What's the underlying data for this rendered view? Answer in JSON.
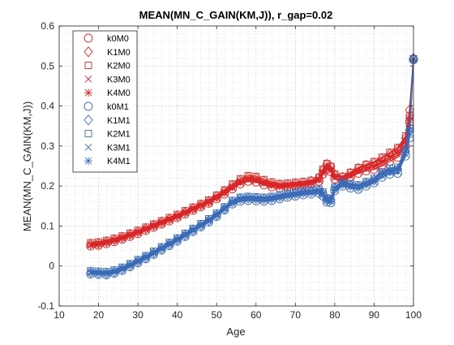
{
  "chart_data": {
    "type": "line",
    "title": "MEAN(MN_C_GAIN(KM,J)), r_gap=0.02",
    "xlabel": "Age",
    "ylabel": "MEAN(MN_C_GAIN(KM,J))",
    "xlim": [
      10,
      100
    ],
    "ylim": [
      -0.1,
      0.6
    ],
    "xticks": [
      10,
      20,
      30,
      40,
      50,
      60,
      70,
      80,
      90,
      100
    ],
    "yticks": [
      -0.1,
      0,
      0.1,
      0.2,
      0.3,
      0.4,
      0.5,
      0.6
    ],
    "xtick_labels": [
      "10",
      "20",
      "30",
      "40",
      "50",
      "60",
      "70",
      "80",
      "90",
      "100"
    ],
    "ytick_labels": [
      "-0.1",
      "0",
      "0.1",
      "0.2",
      "0.3",
      "0.4",
      "0.5",
      "0.6"
    ],
    "grid": "on (major and minor dotted)",
    "legend_position": "top-left",
    "colors": {
      "M0": "#d62728",
      "M1": "#3b6bb5"
    },
    "x": [
      18,
      20,
      22,
      24,
      26,
      28,
      30,
      32,
      34,
      36,
      38,
      40,
      42,
      44,
      46,
      48,
      50,
      52,
      54,
      56,
      58,
      60,
      62,
      64,
      66,
      68,
      70,
      72,
      74,
      76,
      77,
      78,
      79,
      80,
      82,
      84,
      86,
      88,
      90,
      92,
      94,
      96,
      98,
      99,
      100
    ],
    "series": [
      {
        "name": "k0M0",
        "marker": "circle",
        "color": "#d62728",
        "values": [
          0.05,
          0.052,
          0.056,
          0.061,
          0.067,
          0.074,
          0.081,
          0.089,
          0.097,
          0.105,
          0.113,
          0.121,
          0.13,
          0.139,
          0.148,
          0.157,
          0.168,
          0.18,
          0.193,
          0.205,
          0.212,
          0.21,
          0.203,
          0.198,
          0.196,
          0.198,
          0.2,
          0.202,
          0.205,
          0.212,
          0.23,
          0.242,
          0.236,
          0.218,
          0.212,
          0.222,
          0.232,
          0.238,
          0.242,
          0.25,
          0.262,
          0.272,
          0.3,
          0.36,
          0.516
        ]
      },
      {
        "name": "K1M0",
        "marker": "diamond",
        "color": "#d62728",
        "values": [
          0.055,
          0.057,
          0.061,
          0.066,
          0.072,
          0.079,
          0.086,
          0.094,
          0.102,
          0.11,
          0.118,
          0.126,
          0.135,
          0.144,
          0.153,
          0.162,
          0.174,
          0.187,
          0.201,
          0.214,
          0.222,
          0.22,
          0.212,
          0.206,
          0.203,
          0.204,
          0.206,
          0.208,
          0.212,
          0.22,
          0.24,
          0.254,
          0.248,
          0.228,
          0.222,
          0.232,
          0.244,
          0.252,
          0.258,
          0.268,
          0.28,
          0.292,
          0.32,
          0.39,
          0.519
        ]
      },
      {
        "name": "K2M0",
        "marker": "square",
        "color": "#d62728",
        "values": [
          0.058,
          0.06,
          0.064,
          0.069,
          0.075,
          0.082,
          0.089,
          0.097,
          0.105,
          0.113,
          0.121,
          0.129,
          0.138,
          0.147,
          0.156,
          0.165,
          0.177,
          0.19,
          0.205,
          0.218,
          0.226,
          0.224,
          0.216,
          0.21,
          0.206,
          0.207,
          0.209,
          0.211,
          0.214,
          0.222,
          0.242,
          0.256,
          0.249,
          0.23,
          0.224,
          0.234,
          0.246,
          0.254,
          0.261,
          0.272,
          0.284,
          0.296,
          0.325,
          0.375,
          0.518
        ]
      },
      {
        "name": "K3M0",
        "marker": "x",
        "color": "#d62728",
        "values": [
          0.052,
          0.054,
          0.058,
          0.063,
          0.069,
          0.076,
          0.083,
          0.091,
          0.099,
          0.107,
          0.115,
          0.123,
          0.132,
          0.141,
          0.15,
          0.159,
          0.17,
          0.182,
          0.195,
          0.208,
          0.215,
          0.213,
          0.206,
          0.201,
          0.199,
          0.2,
          0.202,
          0.204,
          0.207,
          0.214,
          0.232,
          0.245,
          0.239,
          0.22,
          0.214,
          0.224,
          0.235,
          0.242,
          0.247,
          0.256,
          0.268,
          0.278,
          0.305,
          0.365,
          0.517
        ]
      },
      {
        "name": "K4M0",
        "marker": "asterisk",
        "color": "#d62728",
        "values": [
          0.054,
          0.056,
          0.06,
          0.065,
          0.071,
          0.078,
          0.085,
          0.093,
          0.101,
          0.109,
          0.117,
          0.125,
          0.134,
          0.143,
          0.152,
          0.161,
          0.172,
          0.185,
          0.198,
          0.211,
          0.218,
          0.216,
          0.209,
          0.204,
          0.201,
          0.202,
          0.204,
          0.206,
          0.209,
          0.217,
          0.236,
          0.25,
          0.243,
          0.224,
          0.218,
          0.228,
          0.24,
          0.247,
          0.252,
          0.262,
          0.274,
          0.285,
          0.312,
          0.37,
          0.518
        ]
      },
      {
        "name": "k0M1",
        "marker": "circle",
        "color": "#3b6bb5",
        "values": [
          -0.02,
          -0.021,
          -0.022,
          -0.018,
          -0.011,
          -0.002,
          0.008,
          0.018,
          0.029,
          0.04,
          0.051,
          0.062,
          0.074,
          0.086,
          0.098,
          0.11,
          0.124,
          0.14,
          0.155,
          0.162,
          0.164,
          0.163,
          0.162,
          0.164,
          0.168,
          0.172,
          0.175,
          0.178,
          0.18,
          0.182,
          0.175,
          0.16,
          0.158,
          0.188,
          0.2,
          0.195,
          0.192,
          0.2,
          0.208,
          0.222,
          0.23,
          0.232,
          0.275,
          0.32,
          0.516
        ]
      },
      {
        "name": "K1M1",
        "marker": "diamond",
        "color": "#3b6bb5",
        "values": [
          -0.016,
          -0.017,
          -0.018,
          -0.014,
          -0.007,
          0.002,
          0.012,
          0.022,
          0.033,
          0.044,
          0.055,
          0.066,
          0.078,
          0.09,
          0.102,
          0.114,
          0.128,
          0.144,
          0.16,
          0.168,
          0.17,
          0.169,
          0.168,
          0.17,
          0.174,
          0.178,
          0.181,
          0.184,
          0.186,
          0.188,
          0.181,
          0.166,
          0.165,
          0.194,
          0.206,
          0.202,
          0.199,
          0.207,
          0.215,
          0.23,
          0.238,
          0.241,
          0.285,
          0.338,
          0.518
        ]
      },
      {
        "name": "K2M1",
        "marker": "square",
        "color": "#3b6bb5",
        "values": [
          -0.012,
          -0.013,
          -0.014,
          -0.01,
          -0.003,
          0.006,
          0.016,
          0.026,
          0.037,
          0.048,
          0.059,
          0.07,
          0.082,
          0.094,
          0.106,
          0.118,
          0.132,
          0.148,
          0.164,
          0.172,
          0.174,
          0.173,
          0.172,
          0.174,
          0.178,
          0.182,
          0.185,
          0.188,
          0.19,
          0.192,
          0.185,
          0.17,
          0.169,
          0.198,
          0.21,
          0.206,
          0.203,
          0.211,
          0.22,
          0.236,
          0.244,
          0.247,
          0.292,
          0.345,
          0.517
        ]
      },
      {
        "name": "K3M1",
        "marker": "x",
        "color": "#3b6bb5",
        "values": [
          -0.018,
          -0.019,
          -0.02,
          -0.016,
          -0.009,
          0.0,
          0.01,
          0.02,
          0.031,
          0.042,
          0.053,
          0.064,
          0.076,
          0.088,
          0.1,
          0.112,
          0.126,
          0.142,
          0.157,
          0.165,
          0.167,
          0.166,
          0.165,
          0.167,
          0.171,
          0.175,
          0.178,
          0.181,
          0.183,
          0.185,
          0.178,
          0.163,
          0.162,
          0.191,
          0.203,
          0.198,
          0.195,
          0.203,
          0.211,
          0.226,
          0.234,
          0.236,
          0.28,
          0.328,
          0.517
        ]
      },
      {
        "name": "K4M1",
        "marker": "asterisk",
        "color": "#3b6bb5",
        "values": [
          -0.014,
          -0.015,
          -0.016,
          -0.012,
          -0.005,
          0.004,
          0.014,
          0.024,
          0.035,
          0.046,
          0.057,
          0.068,
          0.08,
          0.092,
          0.104,
          0.116,
          0.13,
          0.146,
          0.162,
          0.17,
          0.172,
          0.171,
          0.17,
          0.172,
          0.176,
          0.18,
          0.183,
          0.186,
          0.188,
          0.19,
          0.183,
          0.168,
          0.167,
          0.196,
          0.208,
          0.204,
          0.201,
          0.209,
          0.217,
          0.232,
          0.24,
          0.244,
          0.288,
          0.34,
          0.517
        ]
      }
    ]
  }
}
